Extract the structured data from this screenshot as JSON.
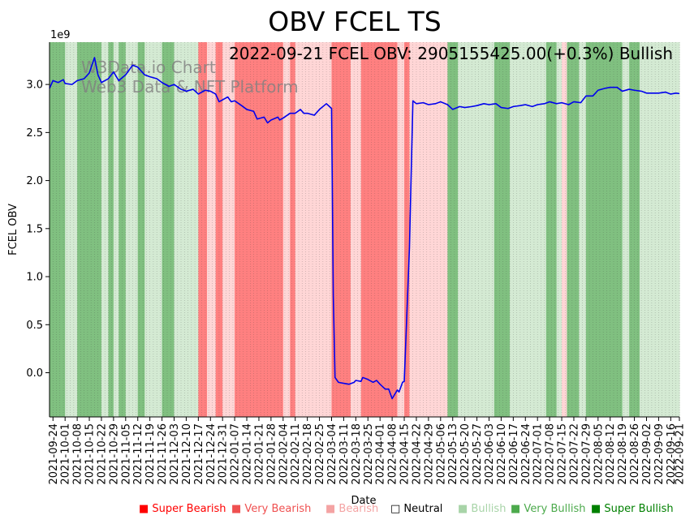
{
  "chart_data": {
    "type": "line",
    "title": "OBV FCEL TS",
    "annotation": "2022-09-21 FCEL OBV: 2905155425.00(+0.3%) Bullish",
    "watermark_lines": [
      "W3Data.io Chart",
      "Web3 Data & NFT Platform"
    ],
    "xlabel": "Date",
    "ylabel": "FCEL OBV",
    "y_offset_label": "1e9",
    "ylim": [
      -0.46,
      3.44
    ],
    "yticks": [
      0.0,
      0.5,
      1.0,
      1.5,
      2.0,
      2.5,
      3.0
    ],
    "ytick_labels": [
      "0.0",
      "0.5",
      "1.0",
      "1.5",
      "2.0",
      "2.5",
      "3.0"
    ],
    "x_start": "2021-09-22",
    "x_end": "2022-09-21",
    "xtick_labels": [
      "2021-09-24",
      "2021-10-01",
      "2021-10-08",
      "2021-10-15",
      "2021-10-22",
      "2021-10-29",
      "2021-11-05",
      "2021-11-12",
      "2021-11-19",
      "2021-11-26",
      "2021-12-03",
      "2021-12-10",
      "2021-12-17",
      "2021-12-24",
      "2021-12-31",
      "2022-01-07",
      "2022-01-14",
      "2022-01-21",
      "2022-01-28",
      "2022-02-04",
      "2022-02-11",
      "2022-02-18",
      "2022-02-25",
      "2022-03-04",
      "2022-03-11",
      "2022-03-18",
      "2022-03-25",
      "2022-04-01",
      "2022-04-08",
      "2022-04-15",
      "2022-04-22",
      "2022-04-29",
      "2022-05-06",
      "2022-05-13",
      "2022-05-20",
      "2022-05-27",
      "2022-06-03",
      "2022-06-10",
      "2022-06-17",
      "2022-06-24",
      "2022-07-01",
      "2022-07-08",
      "2022-07-15",
      "2022-07-22",
      "2022-07-29",
      "2022-08-05",
      "2022-08-12",
      "2022-08-19",
      "2022-08-26",
      "2022-09-02",
      "2022-09-09",
      "2022-09-16",
      "2022-09-21"
    ],
    "series": [
      {
        "name": "FCEL OBV",
        "color": "#0000ee",
        "points": [
          [
            "2021-09-22",
            2.96
          ],
          [
            "2021-09-24",
            3.04
          ],
          [
            "2021-09-27",
            3.02
          ],
          [
            "2021-09-30",
            3.05
          ],
          [
            "2021-10-01",
            3.01
          ],
          [
            "2021-10-05",
            3.0
          ],
          [
            "2021-10-08",
            3.04
          ],
          [
            "2021-10-12",
            3.06
          ],
          [
            "2021-10-15",
            3.12
          ],
          [
            "2021-10-18",
            3.28
          ],
          [
            "2021-10-20",
            3.1
          ],
          [
            "2021-10-22",
            3.02
          ],
          [
            "2021-10-26",
            3.06
          ],
          [
            "2021-10-29",
            3.13
          ],
          [
            "2021-11-01",
            3.04
          ],
          [
            "2021-11-05",
            3.1
          ],
          [
            "2021-11-09",
            3.2
          ],
          [
            "2021-11-12",
            3.18
          ],
          [
            "2021-11-16",
            3.1
          ],
          [
            "2021-11-19",
            3.08
          ],
          [
            "2021-11-23",
            3.06
          ],
          [
            "2021-11-26",
            3.02
          ],
          [
            "2021-11-30",
            2.98
          ],
          [
            "2021-12-03",
            3.0
          ],
          [
            "2021-12-07",
            2.95
          ],
          [
            "2021-12-10",
            2.93
          ],
          [
            "2021-12-14",
            2.95
          ],
          [
            "2021-12-17",
            2.9
          ],
          [
            "2021-12-21",
            2.94
          ],
          [
            "2021-12-24",
            2.93
          ],
          [
            "2021-12-27",
            2.9
          ],
          [
            "2021-12-29",
            2.82
          ],
          [
            "2021-12-31",
            2.84
          ],
          [
            "2022-01-03",
            2.87
          ],
          [
            "2022-01-05",
            2.82
          ],
          [
            "2022-01-07",
            2.83
          ],
          [
            "2022-01-11",
            2.78
          ],
          [
            "2022-01-14",
            2.74
          ],
          [
            "2022-01-18",
            2.72
          ],
          [
            "2022-01-20",
            2.64
          ],
          [
            "2022-01-24",
            2.66
          ],
          [
            "2022-01-26",
            2.6
          ],
          [
            "2022-01-28",
            2.63
          ],
          [
            "2022-02-01",
            2.66
          ],
          [
            "2022-02-02",
            2.63
          ],
          [
            "2022-02-04",
            2.65
          ],
          [
            "2022-02-08",
            2.7
          ],
          [
            "2022-02-11",
            2.7
          ],
          [
            "2022-02-14",
            2.74
          ],
          [
            "2022-02-16",
            2.7
          ],
          [
            "2022-02-18",
            2.7
          ],
          [
            "2022-02-22",
            2.68
          ],
          [
            "2022-02-25",
            2.74
          ],
          [
            "2022-03-01",
            2.8
          ],
          [
            "2022-03-04",
            2.75
          ],
          [
            "2022-03-05",
            0.8
          ],
          [
            "2022-03-06",
            -0.05
          ],
          [
            "2022-03-08",
            -0.1
          ],
          [
            "2022-03-11",
            -0.11
          ],
          [
            "2022-03-14",
            -0.12
          ],
          [
            "2022-03-17",
            -0.1
          ],
          [
            "2022-03-18",
            -0.08
          ],
          [
            "2022-03-21",
            -0.09
          ],
          [
            "2022-03-22",
            -0.05
          ],
          [
            "2022-03-25",
            -0.07
          ],
          [
            "2022-03-28",
            -0.1
          ],
          [
            "2022-03-30",
            -0.08
          ],
          [
            "2022-04-01",
            -0.12
          ],
          [
            "2022-04-04",
            -0.17
          ],
          [
            "2022-04-06",
            -0.17
          ],
          [
            "2022-04-08",
            -0.27
          ],
          [
            "2022-04-11",
            -0.18
          ],
          [
            "2022-04-12",
            -0.2
          ],
          [
            "2022-04-14",
            -0.1
          ],
          [
            "2022-04-15",
            -0.09
          ],
          [
            "2022-04-18",
            1.3
          ],
          [
            "2022-04-20",
            2.83
          ],
          [
            "2022-04-22",
            2.8
          ],
          [
            "2022-04-26",
            2.81
          ],
          [
            "2022-04-29",
            2.79
          ],
          [
            "2022-05-03",
            2.8
          ],
          [
            "2022-05-06",
            2.82
          ],
          [
            "2022-05-10",
            2.79
          ],
          [
            "2022-05-13",
            2.74
          ],
          [
            "2022-05-17",
            2.77
          ],
          [
            "2022-05-20",
            2.76
          ],
          [
            "2022-05-24",
            2.77
          ],
          [
            "2022-05-27",
            2.78
          ],
          [
            "2022-05-31",
            2.8
          ],
          [
            "2022-06-03",
            2.79
          ],
          [
            "2022-06-07",
            2.8
          ],
          [
            "2022-06-10",
            2.76
          ],
          [
            "2022-06-14",
            2.75
          ],
          [
            "2022-06-17",
            2.77
          ],
          [
            "2022-06-21",
            2.78
          ],
          [
            "2022-06-24",
            2.79
          ],
          [
            "2022-06-28",
            2.77
          ],
          [
            "2022-07-01",
            2.79
          ],
          [
            "2022-07-05",
            2.8
          ],
          [
            "2022-07-08",
            2.82
          ],
          [
            "2022-07-12",
            2.8
          ],
          [
            "2022-07-15",
            2.81
          ],
          [
            "2022-07-19",
            2.79
          ],
          [
            "2022-07-22",
            2.82
          ],
          [
            "2022-07-26",
            2.81
          ],
          [
            "2022-07-29",
            2.88
          ],
          [
            "2022-08-02",
            2.88
          ],
          [
            "2022-08-05",
            2.94
          ],
          [
            "2022-08-09",
            2.96
          ],
          [
            "2022-08-12",
            2.97
          ],
          [
            "2022-08-16",
            2.97
          ],
          [
            "2022-08-19",
            2.93
          ],
          [
            "2022-08-23",
            2.95
          ],
          [
            "2022-08-26",
            2.94
          ],
          [
            "2022-08-30",
            2.93
          ],
          [
            "2022-09-02",
            2.91
          ],
          [
            "2022-09-06",
            2.91
          ],
          [
            "2022-09-09",
            2.91
          ],
          [
            "2022-09-13",
            2.92
          ],
          [
            "2022-09-16",
            2.9
          ],
          [
            "2022-09-19",
            2.91
          ],
          [
            "2022-09-21",
            2.905
          ]
        ]
      }
    ],
    "background_bands": [
      {
        "start": "2021-09-22",
        "end": "2021-09-24",
        "level": "Very Bullish"
      },
      {
        "start": "2021-09-24",
        "end": "2021-10-01",
        "level": "Very Bullish"
      },
      {
        "start": "2021-10-01",
        "end": "2021-10-08",
        "level": "Bullish"
      },
      {
        "start": "2021-10-08",
        "end": "2021-10-22",
        "level": "Very Bullish"
      },
      {
        "start": "2021-10-22",
        "end": "2021-10-26",
        "level": "Bullish"
      },
      {
        "start": "2021-10-26",
        "end": "2021-10-29",
        "level": "Very Bullish"
      },
      {
        "start": "2021-10-29",
        "end": "2021-11-01",
        "level": "Bullish"
      },
      {
        "start": "2021-11-01",
        "end": "2021-11-05",
        "level": "Very Bullish"
      },
      {
        "start": "2021-11-05",
        "end": "2021-11-12",
        "level": "Bullish"
      },
      {
        "start": "2021-11-12",
        "end": "2021-11-16",
        "level": "Very Bullish"
      },
      {
        "start": "2021-11-16",
        "end": "2021-11-26",
        "level": "Bullish"
      },
      {
        "start": "2021-11-26",
        "end": "2021-12-03",
        "level": "Very Bullish"
      },
      {
        "start": "2021-12-03",
        "end": "2021-12-17",
        "level": "Bullish"
      },
      {
        "start": "2021-12-17",
        "end": "2021-12-22",
        "level": "Very Bearish"
      },
      {
        "start": "2021-12-22",
        "end": "2021-12-27",
        "level": "Bearish"
      },
      {
        "start": "2021-12-27",
        "end": "2021-12-31",
        "level": "Very Bearish"
      },
      {
        "start": "2021-12-31",
        "end": "2022-01-07",
        "level": "Bearish"
      },
      {
        "start": "2022-01-07",
        "end": "2022-01-28",
        "level": "Very Bearish"
      },
      {
        "start": "2022-01-28",
        "end": "2022-02-04",
        "level": "Very Bearish"
      },
      {
        "start": "2022-02-04",
        "end": "2022-02-08",
        "level": "Bearish"
      },
      {
        "start": "2022-02-08",
        "end": "2022-02-11",
        "level": "Very Bearish"
      },
      {
        "start": "2022-02-11",
        "end": "2022-03-04",
        "level": "Bearish"
      },
      {
        "start": "2022-03-04",
        "end": "2022-03-15",
        "level": "Very Bearish"
      },
      {
        "start": "2022-03-15",
        "end": "2022-03-21",
        "level": "Bearish"
      },
      {
        "start": "2022-03-21",
        "end": "2022-04-11",
        "level": "Very Bearish"
      },
      {
        "start": "2022-04-11",
        "end": "2022-04-15",
        "level": "Bearish"
      },
      {
        "start": "2022-04-15",
        "end": "2022-04-18",
        "level": "Very Bearish"
      },
      {
        "start": "2022-04-18",
        "end": "2022-05-10",
        "level": "Bearish"
      },
      {
        "start": "2022-05-10",
        "end": "2022-05-16",
        "level": "Very Bullish"
      },
      {
        "start": "2022-05-16",
        "end": "2022-06-06",
        "level": "Bullish"
      },
      {
        "start": "2022-06-06",
        "end": "2022-06-15",
        "level": "Very Bullish"
      },
      {
        "start": "2022-06-15",
        "end": "2022-07-06",
        "level": "Bullish"
      },
      {
        "start": "2022-07-06",
        "end": "2022-07-12",
        "level": "Very Bullish"
      },
      {
        "start": "2022-07-12",
        "end": "2022-07-15",
        "level": "Bullish"
      },
      {
        "start": "2022-07-15",
        "end": "2022-07-18",
        "level": "Bearish"
      },
      {
        "start": "2022-07-18",
        "end": "2022-07-25",
        "level": "Very Bullish"
      },
      {
        "start": "2022-07-25",
        "end": "2022-07-29",
        "level": "Bullish"
      },
      {
        "start": "2022-07-29",
        "end": "2022-08-19",
        "level": "Very Bullish"
      },
      {
        "start": "2022-08-19",
        "end": "2022-08-23",
        "level": "Bullish"
      },
      {
        "start": "2022-08-23",
        "end": "2022-08-29",
        "level": "Very Bullish"
      },
      {
        "start": "2022-08-29",
        "end": "2022-09-21",
        "level": "Bullish"
      }
    ],
    "band_colors": {
      "Super Bearish": "#ff0000",
      "Very Bearish": "#ff8080",
      "Bearish": "#ffd6d6",
      "Neutral": "#ffffff",
      "Bullish": "#d4ead3",
      "Very Bullish": "#80c080",
      "Super Bullish": "#008000"
    },
    "legend": [
      {
        "label": "Super Bearish",
        "color": "#ff0000",
        "marker": "■"
      },
      {
        "label": "Very Bearish",
        "color": "#ef5050",
        "marker": "■"
      },
      {
        "label": "Bearish",
        "color": "#f4a3a3",
        "marker": "■"
      },
      {
        "label": "Neutral",
        "color": "#000000",
        "marker": "□"
      },
      {
        "label": "Bullish",
        "color": "#a8d4a8",
        "marker": "■"
      },
      {
        "label": "Very Bullish",
        "color": "#4caa4c",
        "marker": "■"
      },
      {
        "label": "Super Bullish",
        "color": "#008000",
        "marker": "■"
      }
    ]
  }
}
